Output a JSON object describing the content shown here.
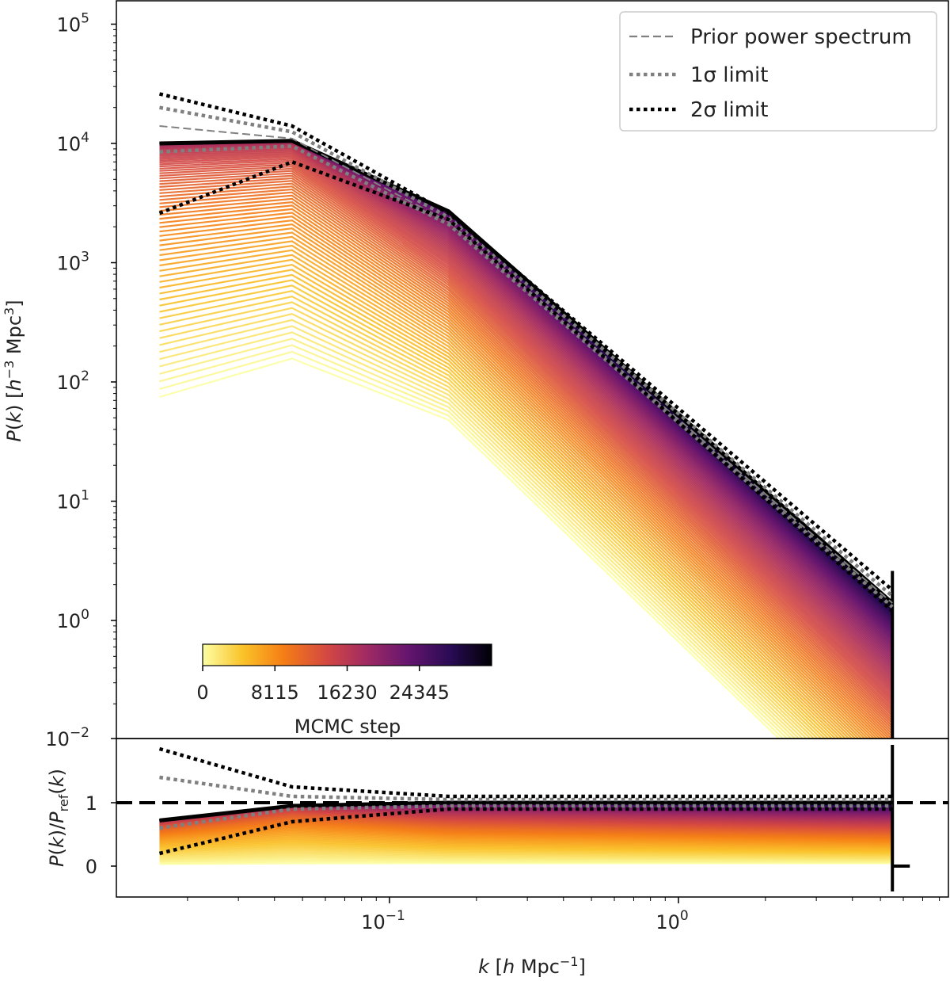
{
  "chart_data": {
    "type": "line",
    "x_axis": {
      "scale": "log",
      "label": "k [h Mpc⁻¹]",
      "ticks": [
        {
          "value": 0.1,
          "mantissa": "10",
          "exp": "−1"
        },
        {
          "value": 1.0,
          "mantissa": "10",
          "exp": "0"
        }
      ]
    },
    "top_panel": {
      "ylabel": "P(k) [h⁻³ Mpc³]",
      "yscale": "log",
      "ylim": [
        0.01,
        150000
      ],
      "yticks": [
        {
          "value": 100000,
          "mantissa": "10",
          "exp": "5"
        },
        {
          "value": 10000,
          "mantissa": "10",
          "exp": "4"
        },
        {
          "value": 1000,
          "mantissa": "10",
          "exp": "3"
        },
        {
          "value": 100,
          "mantissa": "10",
          "exp": "2"
        },
        {
          "value": 10,
          "mantissa": "10",
          "exp": "1"
        },
        {
          "value": 1,
          "mantissa": "10",
          "exp": "0"
        },
        {
          "value": 0.01,
          "mantissa": "10",
          "exp": "−2"
        }
      ],
      "k": [
        0.016,
        0.046,
        0.16,
        5.5
      ],
      "prior": [
        14000,
        11000,
        2200,
        1.4
      ],
      "sigma1_upper": [
        20000,
        12500,
        2400,
        1.6
      ],
      "sigma1_lower": [
        8500,
        9500,
        2100,
        1.3
      ],
      "sigma2_upper": [
        26000,
        14000,
        2600,
        1.8
      ],
      "sigma2_lower": [
        2600,
        7000,
        2300,
        1.2
      ],
      "final_sample": [
        10000,
        10500,
        2700,
        1.4
      ],
      "early_sample_start": [
        60,
        130,
        40,
        0.01
      ]
    },
    "bottom_panel": {
      "ylabel": "P(k)/P_ref(k)",
      "ylim": [
        -0.5,
        2.0
      ],
      "yticks": [
        0,
        1
      ],
      "reference_line": 1,
      "sigma1_upper": [
        1.4,
        1.1,
        1.05,
        1.05
      ],
      "sigma1_lower": [
        0.6,
        0.9,
        0.95,
        0.95
      ],
      "sigma2_upper": [
        1.85,
        1.25,
        1.1,
        1.1
      ],
      "sigma2_lower": [
        0.2,
        0.7,
        0.9,
        0.9
      ],
      "final_sample": [
        0.72,
        0.95,
        1.0,
        1.0
      ]
    },
    "legend": {
      "position": "top-right",
      "entries": [
        {
          "label": "Prior power spectrum",
          "style": "dashed",
          "color": "#808080"
        },
        {
          "label": "1σ limit",
          "style": "dotted",
          "color": "#808080"
        },
        {
          "label": "2σ limit",
          "style": "dotted",
          "color": "#000000"
        }
      ]
    },
    "colorbar": {
      "label": "MCMC step",
      "ticks": [
        "0",
        "8115",
        "16230",
        "24345"
      ],
      "tick_values": [
        0,
        8115,
        16230,
        24345
      ],
      "max_value": 32460,
      "colormap": [
        "#fcffa4",
        "#fac228",
        "#f57d15",
        "#d44842",
        "#9f2a63",
        "#65156e",
        "#280b53",
        "#000004"
      ]
    }
  }
}
